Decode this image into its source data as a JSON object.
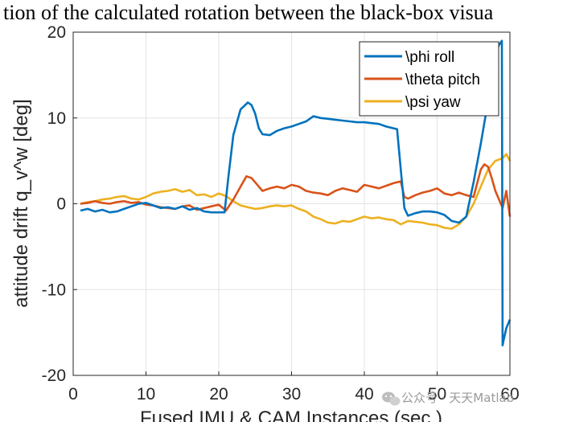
{
  "chart_data": {
    "type": "line",
    "title": "tion of the calculated rotation between the black-box visua",
    "xlabel": "Fused IMU & CAM Instances (sec.)",
    "ylabel": "attitude drift q_v^w [deg]",
    "xlim": [
      0,
      60
    ],
    "ylim": [
      -20,
      20
    ],
    "xticks": [
      "0",
      "10",
      "20",
      "30",
      "40",
      "50",
      "60"
    ],
    "yticks": [
      "20",
      "10",
      "0",
      "-10",
      "-20"
    ],
    "grid": true,
    "legend_position": "top-right",
    "series": [
      {
        "name": "\\phi roll",
        "color": "#0072BD",
        "x": [
          1,
          2,
          3,
          4,
          5,
          6,
          7,
          8,
          9,
          10,
          11,
          12,
          13,
          14,
          15,
          16,
          17,
          18,
          19,
          20,
          20.8,
          21.3,
          22,
          23,
          24,
          24.5,
          25,
          25.5,
          26,
          27,
          28,
          29,
          30,
          31,
          32,
          33,
          34,
          35,
          36,
          37,
          38,
          39,
          40,
          41,
          42,
          43,
          44,
          44.5,
          45,
          45.5,
          46,
          47,
          48,
          49,
          50,
          51,
          52,
          53,
          54,
          55,
          56,
          57,
          58,
          58.5,
          58.9,
          59.0,
          59.1,
          59.5,
          60
        ],
        "y": [
          -0.8,
          -0.6,
          -0.9,
          -0.7,
          -1.0,
          -0.9,
          -0.6,
          -0.3,
          0.0,
          0.1,
          -0.2,
          -0.5,
          -0.4,
          -0.6,
          -0.3,
          -0.7,
          -0.5,
          -0.9,
          -1.0,
          -1.0,
          -1.0,
          3.0,
          8.0,
          11.0,
          11.8,
          11.5,
          10.5,
          8.8,
          8.1,
          8.0,
          8.5,
          8.8,
          9.0,
          9.3,
          9.6,
          10.2,
          10.0,
          9.9,
          9.8,
          9.7,
          9.6,
          9.5,
          9.5,
          9.4,
          9.3,
          9.0,
          8.8,
          8.7,
          4.0,
          -0.5,
          -1.4,
          -1.1,
          -0.9,
          -0.9,
          -1.0,
          -1.3,
          -2.0,
          -2.2,
          -1.5,
          2.5,
          7.0,
          12.0,
          17.5,
          18.5,
          19.0,
          -16.5,
          -16.0,
          -14.5,
          -13.5
        ]
      },
      {
        "name": "\\theta pitch",
        "color": "#D95319",
        "x": [
          1,
          2,
          3,
          4,
          5,
          6,
          7,
          8,
          9,
          10,
          11,
          12,
          13,
          14,
          15,
          16,
          17,
          18,
          19,
          20,
          21,
          22,
          23,
          23.8,
          24.5,
          25,
          26,
          27,
          28,
          29,
          30,
          31,
          32,
          33,
          34,
          35,
          36,
          37,
          38,
          39,
          40,
          41,
          42,
          43,
          44,
          45,
          45.5,
          46,
          47,
          48,
          49,
          50,
          51,
          52,
          53,
          54,
          55,
          56,
          56.5,
          57,
          57.5,
          58,
          59,
          59.5,
          60
        ],
        "y": [
          0.0,
          0.1,
          0.3,
          0.1,
          0.0,
          0.2,
          0.3,
          0.1,
          0.2,
          -0.1,
          -0.2,
          -0.4,
          -0.5,
          -0.6,
          -0.3,
          -0.2,
          -0.7,
          -0.5,
          -0.3,
          -0.1,
          -0.8,
          0.5,
          2.0,
          3.2,
          3.0,
          2.5,
          1.5,
          1.8,
          2.0,
          1.8,
          2.2,
          2.0,
          1.5,
          1.3,
          1.2,
          1.0,
          1.5,
          1.8,
          1.6,
          1.4,
          2.2,
          2.0,
          1.8,
          2.1,
          2.4,
          2.6,
          0.8,
          0.6,
          1.0,
          1.3,
          1.5,
          1.8,
          1.2,
          1.0,
          1.3,
          1.0,
          0.8,
          4.0,
          4.6,
          4.3,
          3.0,
          1.5,
          -0.5,
          1.5,
          -1.5
        ]
      },
      {
        "name": "\\psi yaw",
        "color": "#EDB120",
        "x": [
          1,
          2,
          3,
          4,
          5,
          6,
          7,
          8,
          9,
          10,
          11,
          12,
          13,
          14,
          15,
          16,
          17,
          18,
          19,
          20,
          21,
          22,
          23,
          24,
          25,
          26,
          27,
          28,
          29,
          30,
          31,
          32,
          33,
          34,
          35,
          36,
          37,
          38,
          39,
          40,
          41,
          42,
          43,
          44,
          45,
          46,
          47,
          48,
          49,
          50,
          51,
          52,
          53,
          54,
          55,
          56,
          57,
          58,
          59,
          59.5,
          60
        ],
        "y": [
          0.0,
          0.2,
          0.3,
          0.5,
          0.6,
          0.8,
          0.9,
          0.6,
          0.5,
          0.8,
          1.2,
          1.4,
          1.5,
          1.7,
          1.4,
          1.6,
          1.0,
          1.1,
          0.8,
          1.2,
          0.9,
          0.3,
          -0.2,
          -0.4,
          -0.6,
          -0.5,
          -0.3,
          -0.2,
          -0.3,
          -0.2,
          -0.6,
          -0.9,
          -1.5,
          -1.8,
          -2.2,
          -2.3,
          -2.0,
          -2.1,
          -1.8,
          -1.5,
          -1.7,
          -1.6,
          -1.8,
          -1.9,
          -2.4,
          -2.0,
          -2.1,
          -2.2,
          -2.4,
          -2.5,
          -2.8,
          -2.9,
          -2.4,
          -1.5,
          0.0,
          2.0,
          4.0,
          5.0,
          5.3,
          5.8,
          5.0
        ]
      }
    ]
  },
  "watermark": {
    "icon": "wechat-icon",
    "text": "公众号 · 天天Matlab"
  }
}
